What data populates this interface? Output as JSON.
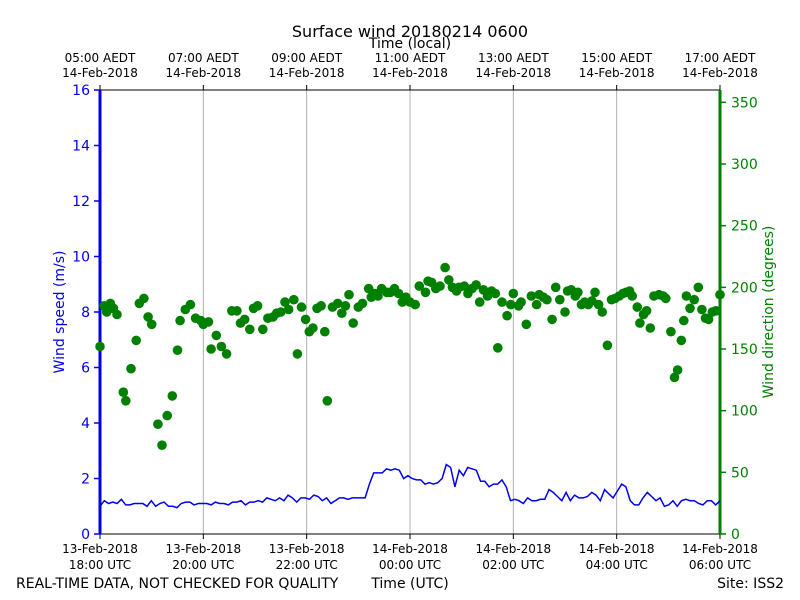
{
  "chart_data": {
    "type": "line",
    "title": "Surface wind 20180214 0600",
    "top_axis_label": "Time (local)",
    "xlabel": "Time (UTC)",
    "ylabel_left": "Wind speed (m/s)",
    "ylabel_right": "Wind direction (degrees)",
    "footer_left": "REAL-TIME DATA, NOT CHECKED FOR QUALITY",
    "footer_right": "Site: ISS2",
    "x_range_hours": [
      0,
      12
    ],
    "ylim_left": [
      0,
      16
    ],
    "ylim_right": [
      0,
      360
    ],
    "grid": "vertical",
    "colors": {
      "speed": "#0000ee",
      "direction": "#008000",
      "grid": "#b0b0b0",
      "text": "#000000"
    },
    "bottom_ticks": [
      {
        "hour": 0,
        "line1": "13-Feb-2018",
        "line2": "18:00 UTC"
      },
      {
        "hour": 2,
        "line1": "13-Feb-2018",
        "line2": "20:00 UTC"
      },
      {
        "hour": 4,
        "line1": "13-Feb-2018",
        "line2": "22:00 UTC"
      },
      {
        "hour": 6,
        "line1": "14-Feb-2018",
        "line2": "00:00 UTC"
      },
      {
        "hour": 8,
        "line1": "14-Feb-2018",
        "line2": "02:00 UTC"
      },
      {
        "hour": 10,
        "line1": "14-Feb-2018",
        "line2": "04:00 UTC"
      },
      {
        "hour": 12,
        "line1": "14-Feb-2018",
        "line2": "06:00 UTC"
      }
    ],
    "top_ticks": [
      {
        "hour": 0,
        "line1": "05:00 AEDT",
        "line2": "14-Feb-2018"
      },
      {
        "hour": 2,
        "line1": "07:00 AEDT",
        "line2": "14-Feb-2018"
      },
      {
        "hour": 4,
        "line1": "09:00 AEDT",
        "line2": "14-Feb-2018"
      },
      {
        "hour": 6,
        "line1": "11:00 AEDT",
        "line2": "14-Feb-2018"
      },
      {
        "hour": 8,
        "line1": "13:00 AEDT",
        "line2": "14-Feb-2018"
      },
      {
        "hour": 10,
        "line1": "15:00 AEDT",
        "line2": "14-Feb-2018"
      },
      {
        "hour": 12,
        "line1": "17:00 AEDT",
        "line2": "14-Feb-2018"
      }
    ],
    "left_ticks": [
      0,
      2,
      4,
      6,
      8,
      10,
      12,
      14,
      16
    ],
    "right_ticks": [
      0,
      50,
      100,
      150,
      200,
      250,
      300,
      350
    ],
    "series": [
      {
        "name": "Wind speed (m/s)",
        "axis": "left",
        "kind": "line",
        "interval_hours": 0.0833,
        "values": [
          1.0,
          1.2,
          1.1,
          1.15,
          1.1,
          1.25,
          1.05,
          1.05,
          1.1,
          1.1,
          1.1,
          1.0,
          1.2,
          1.0,
          1.1,
          1.15,
          1.0,
          1.0,
          0.95,
          1.1,
          1.15,
          1.15,
          1.05,
          1.1,
          1.1,
          1.1,
          1.05,
          1.15,
          1.1,
          1.1,
          1.05,
          1.15,
          1.15,
          1.2,
          1.05,
          1.15,
          1.15,
          1.2,
          1.15,
          1.3,
          1.25,
          1.2,
          1.3,
          1.2,
          1.4,
          1.3,
          1.15,
          1.3,
          1.3,
          1.25,
          1.4,
          1.35,
          1.2,
          1.3,
          1.1,
          1.2,
          1.3,
          1.3,
          1.25,
          1.3,
          1.3,
          1.3,
          1.3,
          1.8,
          2.2,
          2.2,
          2.2,
          2.35,
          2.3,
          2.35,
          2.3,
          2.0,
          2.1,
          2.0,
          1.95,
          1.95,
          1.8,
          1.85,
          1.8,
          1.85,
          2.0,
          2.5,
          2.4,
          1.7,
          2.3,
          2.1,
          2.4,
          2.35,
          2.3,
          1.9,
          1.9,
          1.7,
          1.8,
          1.8,
          1.95,
          1.7,
          1.2,
          1.25,
          1.2,
          1.1,
          1.3,
          1.2,
          1.2,
          1.25,
          1.25,
          1.6,
          1.5,
          1.35,
          1.2,
          1.5,
          1.2,
          1.4,
          1.3,
          1.3,
          1.35,
          1.5,
          1.4,
          1.2,
          1.6,
          1.45,
          1.3,
          1.55,
          1.8,
          1.7,
          1.2,
          1.05,
          1.05,
          1.3,
          1.5,
          1.35,
          1.2,
          1.3,
          1.0,
          1.05,
          1.2,
          1.0,
          1.2,
          1.25,
          1.2,
          1.2,
          1.1,
          1.05,
          1.2,
          1.2,
          1.05,
          1.2
        ]
      },
      {
        "name": "Wind direction (degrees)",
        "axis": "right",
        "kind": "scatter",
        "points": [
          [
            0.0,
            152
          ],
          [
            0.08,
            185
          ],
          [
            0.13,
            180
          ],
          [
            0.2,
            187
          ],
          [
            0.26,
            183
          ],
          [
            0.33,
            178
          ],
          [
            0.45,
            115
          ],
          [
            0.5,
            108
          ],
          [
            0.6,
            134
          ],
          [
            0.7,
            157
          ],
          [
            0.76,
            187
          ],
          [
            0.85,
            191
          ],
          [
            0.93,
            176
          ],
          [
            1.0,
            170
          ],
          [
            1.12,
            89
          ],
          [
            1.2,
            72
          ],
          [
            1.3,
            96
          ],
          [
            1.4,
            112
          ],
          [
            1.5,
            149
          ],
          [
            1.55,
            173
          ],
          [
            1.65,
            182
          ],
          [
            1.75,
            186
          ],
          [
            1.85,
            175
          ],
          [
            1.95,
            173
          ],
          [
            2.0,
            170
          ],
          [
            2.1,
            172
          ],
          [
            2.15,
            150
          ],
          [
            2.25,
            161
          ],
          [
            2.35,
            152
          ],
          [
            2.45,
            146
          ],
          [
            2.55,
            181
          ],
          [
            2.65,
            181
          ],
          [
            2.72,
            171
          ],
          [
            2.8,
            174
          ],
          [
            2.9,
            166
          ],
          [
            2.97,
            183
          ],
          [
            3.05,
            185
          ],
          [
            3.15,
            166
          ],
          [
            3.25,
            175
          ],
          [
            3.35,
            176
          ],
          [
            3.42,
            179
          ],
          [
            3.5,
            180
          ],
          [
            3.58,
            188
          ],
          [
            3.65,
            182
          ],
          [
            3.75,
            190
          ],
          [
            3.82,
            146
          ],
          [
            3.9,
            184
          ],
          [
            3.98,
            174
          ],
          [
            4.05,
            164
          ],
          [
            4.12,
            167
          ],
          [
            4.2,
            183
          ],
          [
            4.28,
            185
          ],
          [
            4.35,
            164
          ],
          [
            4.4,
            108
          ],
          [
            4.5,
            184
          ],
          [
            4.6,
            187
          ],
          [
            4.68,
            179
          ],
          [
            4.75,
            185
          ],
          [
            4.82,
            194
          ],
          [
            4.9,
            171
          ],
          [
            5.0,
            184
          ],
          [
            5.08,
            187
          ],
          [
            5.2,
            199
          ],
          [
            5.25,
            192
          ],
          [
            5.32,
            195
          ],
          [
            5.38,
            193
          ],
          [
            5.45,
            199
          ],
          [
            5.55,
            196
          ],
          [
            5.62,
            196
          ],
          [
            5.7,
            199
          ],
          [
            5.78,
            195
          ],
          [
            5.85,
            188
          ],
          [
            5.92,
            192
          ],
          [
            6.0,
            188
          ],
          [
            6.1,
            186
          ],
          [
            6.18,
            201
          ],
          [
            6.3,
            196
          ],
          [
            6.35,
            205
          ],
          [
            6.42,
            204
          ],
          [
            6.5,
            199
          ],
          [
            6.58,
            201
          ],
          [
            6.68,
            216
          ],
          [
            6.75,
            206
          ],
          [
            6.82,
            200
          ],
          [
            6.9,
            197
          ],
          [
            6.95,
            200
          ],
          [
            7.05,
            201
          ],
          [
            7.12,
            195
          ],
          [
            7.2,
            199
          ],
          [
            7.28,
            202
          ],
          [
            7.35,
            188
          ],
          [
            7.42,
            198
          ],
          [
            7.5,
            193
          ],
          [
            7.58,
            197
          ],
          [
            7.65,
            195
          ],
          [
            7.7,
            151
          ],
          [
            7.78,
            188
          ],
          [
            7.88,
            177
          ],
          [
            7.95,
            186
          ],
          [
            8.0,
            195
          ],
          [
            8.1,
            185
          ],
          [
            8.15,
            188
          ],
          [
            8.25,
            170
          ],
          [
            8.35,
            193
          ],
          [
            8.45,
            186
          ],
          [
            8.5,
            194
          ],
          [
            8.58,
            192
          ],
          [
            8.65,
            190
          ],
          [
            8.75,
            174
          ],
          [
            8.82,
            200
          ],
          [
            8.9,
            190
          ],
          [
            9.0,
            180
          ],
          [
            9.05,
            197
          ],
          [
            9.12,
            198
          ],
          [
            9.2,
            193
          ],
          [
            9.25,
            196
          ],
          [
            9.32,
            186
          ],
          [
            9.38,
            188
          ],
          [
            9.45,
            186
          ],
          [
            9.52,
            189
          ],
          [
            9.58,
            196
          ],
          [
            9.65,
            186
          ],
          [
            9.72,
            180
          ],
          [
            9.82,
            153
          ],
          [
            9.9,
            190
          ],
          [
            9.97,
            191
          ],
          [
            10.05,
            193
          ],
          [
            10.12,
            195
          ],
          [
            10.18,
            196
          ],
          [
            10.25,
            197
          ],
          [
            10.3,
            193
          ],
          [
            10.4,
            184
          ],
          [
            10.45,
            171
          ],
          [
            10.52,
            178
          ],
          [
            10.58,
            181
          ],
          [
            10.65,
            167
          ],
          [
            10.72,
            193
          ],
          [
            10.82,
            194
          ],
          [
            10.9,
            193
          ],
          [
            10.95,
            191
          ],
          [
            11.05,
            164
          ],
          [
            11.12,
            127
          ],
          [
            11.18,
            133
          ],
          [
            11.25,
            157
          ],
          [
            11.3,
            173
          ],
          [
            11.35,
            193
          ],
          [
            11.42,
            183
          ],
          [
            11.5,
            190
          ],
          [
            11.58,
            200
          ],
          [
            11.65,
            182
          ],
          [
            11.72,
            175
          ],
          [
            11.78,
            174
          ],
          [
            11.85,
            180
          ],
          [
            11.92,
            181
          ],
          [
            12.0,
            194
          ]
        ]
      }
    ]
  }
}
